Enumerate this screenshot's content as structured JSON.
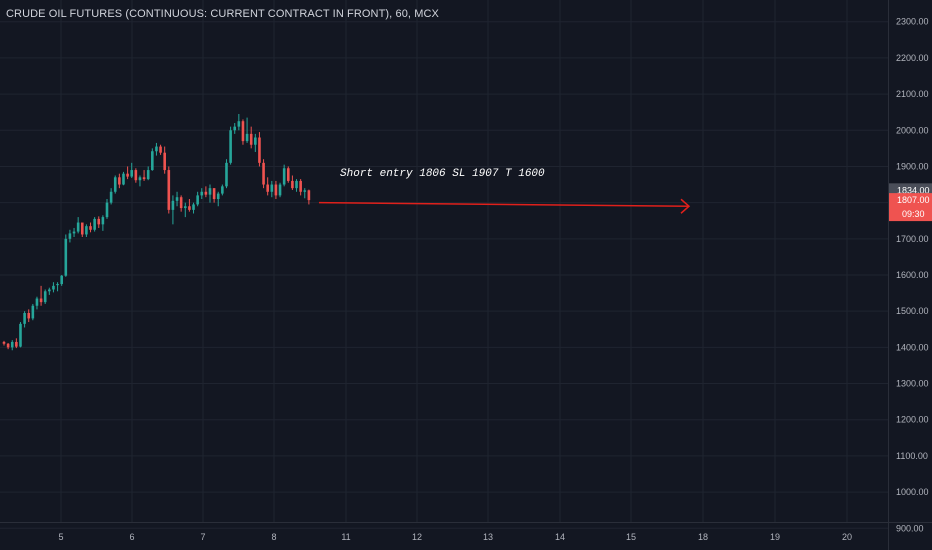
{
  "title": "CRUDE OIL FUTURES (CONTINUOUS: CURRENT CONTRACT IN FRONT), 60, MCX",
  "annotation": "Short entry 1806 SL 1907 T 1600",
  "colors": {
    "background": "#131722",
    "grid": "#1f2430",
    "up": "#26a69a",
    "down": "#ef5350",
    "arrow": "#e0201b",
    "text": "#b2b5be",
    "last_price_bg": "#4a4e59"
  },
  "chart_data": {
    "type": "candlestick",
    "ylim": [
      840,
      2360
    ],
    "y_ticks": [
      "2300.00",
      "2200.00",
      "2100.00",
      "2000.00",
      "1900.00",
      "1800.00",
      "1700.00",
      "1600.00",
      "1500.00",
      "1400.00",
      "1300.00",
      "1200.00",
      "1100.00",
      "1000.00",
      "900.00"
    ],
    "x_ticks": [
      "5",
      "6",
      "7",
      "8",
      "11",
      "12",
      "13",
      "14",
      "15",
      "18",
      "19",
      "20"
    ],
    "price_labels": {
      "last": "1834.00",
      "current": "1807.00",
      "countdown": "09:30"
    },
    "candles": [
      [
        1415,
        1418,
        1405,
        1410
      ],
      [
        1410,
        1412,
        1395,
        1400
      ],
      [
        1400,
        1420,
        1392,
        1415
      ],
      [
        1415,
        1425,
        1398,
        1402
      ],
      [
        1402,
        1470,
        1400,
        1465
      ],
      [
        1465,
        1500,
        1455,
        1495
      ],
      [
        1495,
        1505,
        1470,
        1480
      ],
      [
        1480,
        1520,
        1475,
        1515
      ],
      [
        1515,
        1540,
        1505,
        1535
      ],
      [
        1535,
        1570,
        1515,
        1525
      ],
      [
        1525,
        1560,
        1520,
        1555
      ],
      [
        1555,
        1565,
        1545,
        1560
      ],
      [
        1560,
        1580,
        1552,
        1570
      ],
      [
        1572,
        1580,
        1555,
        1575
      ],
      [
        1575,
        1600,
        1570,
        1598
      ],
      [
        1598,
        1712,
        1595,
        1700
      ],
      [
        1700,
        1725,
        1690,
        1715
      ],
      [
        1715,
        1730,
        1705,
        1720
      ],
      [
        1720,
        1760,
        1715,
        1745
      ],
      [
        1745,
        1740,
        1705,
        1712
      ],
      [
        1712,
        1740,
        1705,
        1735
      ],
      [
        1735,
        1745,
        1718,
        1725
      ],
      [
        1725,
        1760,
        1720,
        1755
      ],
      [
        1755,
        1762,
        1730,
        1740
      ],
      [
        1740,
        1765,
        1722,
        1760
      ],
      [
        1760,
        1810,
        1755,
        1800
      ],
      [
        1800,
        1840,
        1795,
        1830
      ],
      [
        1830,
        1875,
        1825,
        1870
      ],
      [
        1870,
        1880,
        1840,
        1850
      ],
      [
        1850,
        1885,
        1848,
        1880
      ],
      [
        1880,
        1900,
        1865,
        1872
      ],
      [
        1872,
        1910,
        1868,
        1890
      ],
      [
        1890,
        1895,
        1855,
        1862
      ],
      [
        1862,
        1875,
        1845,
        1870
      ],
      [
        1870,
        1890,
        1860,
        1865
      ],
      [
        1865,
        1900,
        1862,
        1890
      ],
      [
        1890,
        1950,
        1888,
        1942
      ],
      [
        1942,
        1965,
        1930,
        1955
      ],
      [
        1955,
        1960,
        1932,
        1938
      ],
      [
        1938,
        1955,
        1880,
        1890
      ],
      [
        1890,
        1900,
        1770,
        1780
      ],
      [
        1780,
        1820,
        1740,
        1805
      ],
      [
        1805,
        1830,
        1790,
        1815
      ],
      [
        1815,
        1820,
        1775,
        1785
      ],
      [
        1785,
        1800,
        1760,
        1790
      ],
      [
        1790,
        1810,
        1775,
        1780
      ],
      [
        1780,
        1800,
        1770,
        1795
      ],
      [
        1795,
        1830,
        1790,
        1820
      ],
      [
        1820,
        1840,
        1810,
        1830
      ],
      [
        1830,
        1845,
        1815,
        1822
      ],
      [
        1822,
        1850,
        1800,
        1840
      ],
      [
        1840,
        1840,
        1800,
        1810
      ],
      [
        1810,
        1830,
        1790,
        1825
      ],
      [
        1825,
        1850,
        1820,
        1845
      ],
      [
        1845,
        1920,
        1840,
        1910
      ],
      [
        1910,
        2010,
        1905,
        2000
      ],
      [
        2000,
        2020,
        1990,
        2010
      ],
      [
        2010,
        2045,
        2000,
        2025
      ],
      [
        2025,
        2030,
        1960,
        1970
      ],
      [
        1970,
        2035,
        1965,
        1990
      ],
      [
        1990,
        2010,
        1950,
        1960
      ],
      [
        1960,
        1990,
        1940,
        1980
      ],
      [
        1980,
        1995,
        1900,
        1910
      ],
      [
        1910,
        1920,
        1840,
        1850
      ],
      [
        1850,
        1870,
        1820,
        1830
      ],
      [
        1830,
        1860,
        1815,
        1850
      ],
      [
        1850,
        1860,
        1810,
        1820
      ],
      [
        1820,
        1855,
        1815,
        1850
      ],
      [
        1850,
        1905,
        1845,
        1895
      ],
      [
        1895,
        1900,
        1855,
        1860
      ],
      [
        1860,
        1875,
        1835,
        1840
      ],
      [
        1840,
        1865,
        1830,
        1860
      ],
      [
        1860,
        1865,
        1820,
        1830
      ],
      [
        1830,
        1840,
        1812,
        1834
      ],
      [
        1834,
        1836,
        1795,
        1807
      ]
    ],
    "arrow": {
      "from": {
        "candle": 75,
        "price": 1800
      },
      "to": {
        "x_tick": "18",
        "price": 1790
      }
    }
  }
}
